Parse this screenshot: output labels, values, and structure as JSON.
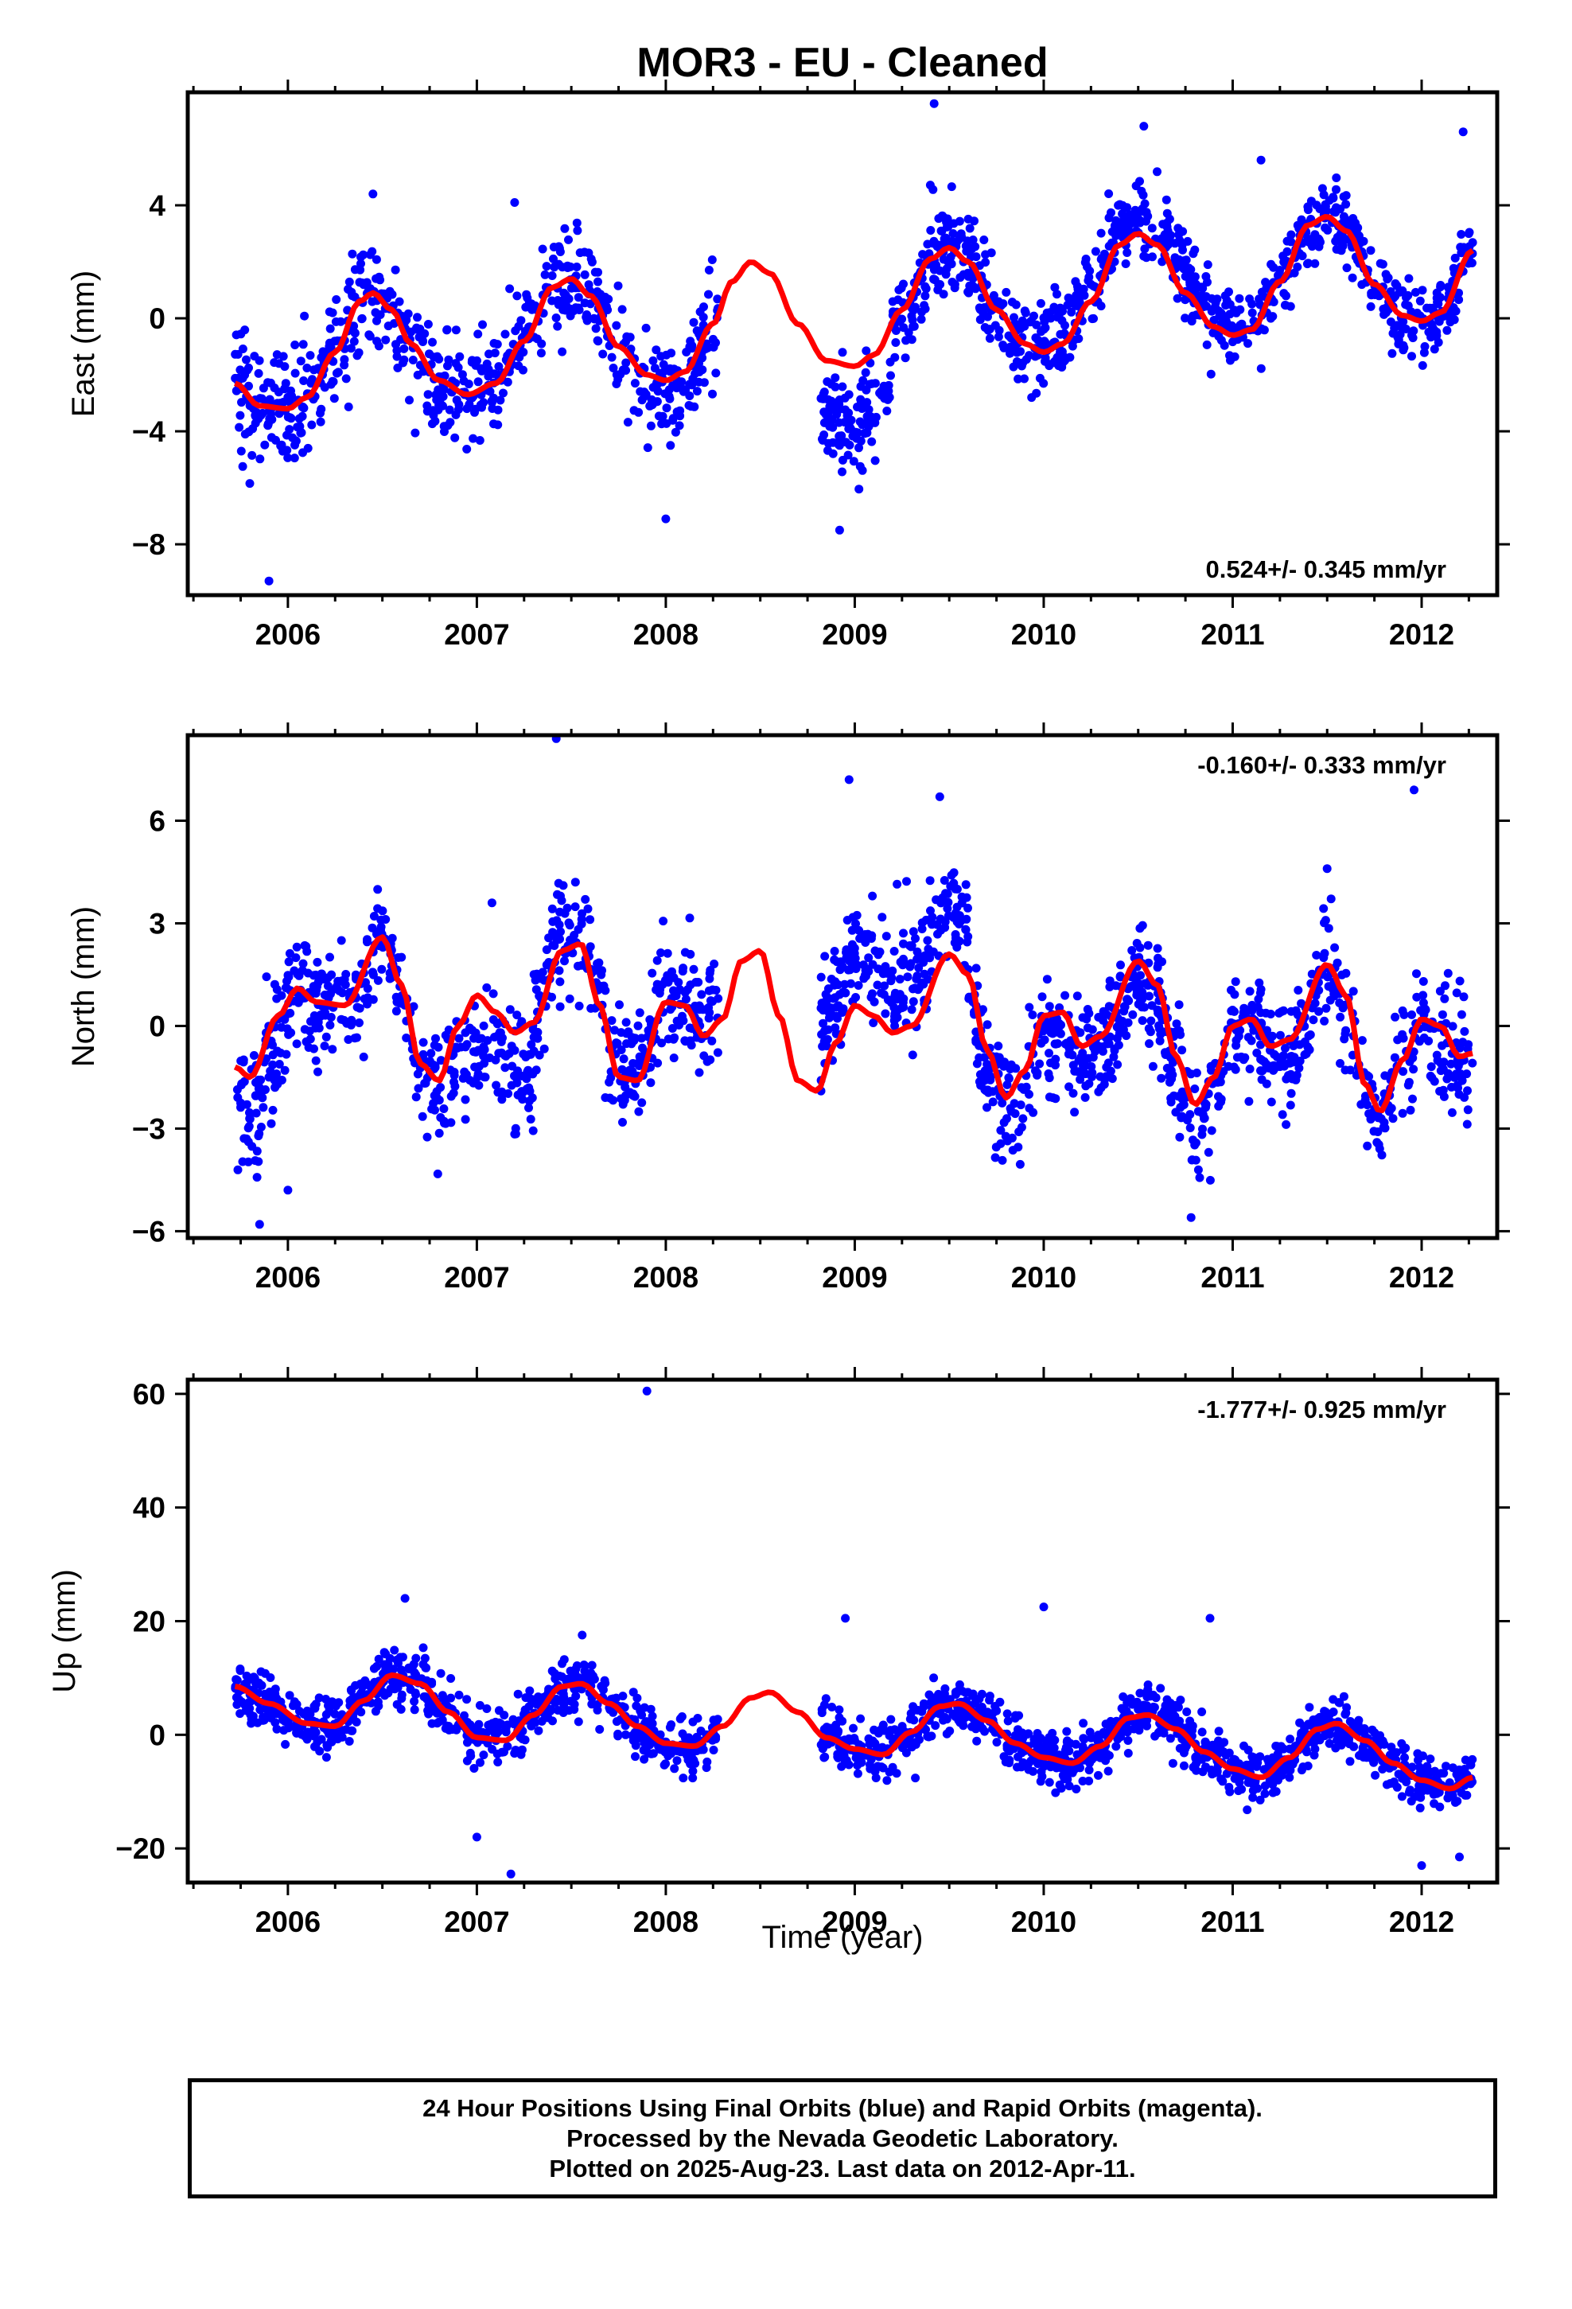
{
  "title": "MOR3  - EU - Cleaned",
  "colors": {
    "final_points": "#0000ff",
    "model_curve": "#ff0000",
    "frame": "#000000"
  },
  "chart_data": [
    {
      "type": "scatter",
      "ylabel": "East (mm)",
      "xlabel": "",
      "xlim": [
        2005.47,
        2012.4
      ],
      "ylim": [
        -9.8,
        8.0
      ],
      "x_ticks": [
        2006,
        2007,
        2008,
        2009,
        2010,
        2011,
        2012
      ],
      "x_tick_labels": [
        "2006",
        "2007",
        "2008",
        "2009",
        "2010",
        "2011",
        "2012"
      ],
      "y_ticks": [
        -8,
        -4,
        0,
        4
      ],
      "y_tick_labels": [
        "−8",
        "−4",
        "0",
        "4"
      ],
      "rate_label": "0.524+/- 0.345 mm/yr",
      "rate_position": "bottom-right",
      "model_curve": {
        "x": [
          2005.72,
          2005.85,
          2006.0,
          2006.1,
          2006.25,
          2006.38,
          2006.45,
          2006.55,
          2006.65,
          2006.8,
          2006.95,
          2007.1,
          2007.25,
          2007.4,
          2007.5,
          2007.6,
          2007.75,
          2007.9,
          2008.0,
          2008.1,
          2008.25,
          2008.35,
          2008.45,
          2008.55,
          2008.7,
          2008.85,
          2009.0,
          2009.1,
          2009.25,
          2009.4,
          2009.5,
          2009.6,
          2009.75,
          2009.9,
          2010.0,
          2010.1,
          2010.25,
          2010.4,
          2010.5,
          2010.6,
          2010.75,
          2010.9,
          2011.0,
          2011.1,
          2011.25,
          2011.4,
          2011.5,
          2011.6,
          2011.75,
          2011.9,
          2012.0,
          2012.1,
          2012.27
        ],
        "y": [
          -2.3,
          -3.1,
          -3.2,
          -2.8,
          -1.2,
          0.6,
          0.9,
          0.3,
          -0.9,
          -2.2,
          -2.7,
          -2.3,
          -0.8,
          1.1,
          1.4,
          0.8,
          -1.0,
          -2.0,
          -2.2,
          -1.9,
          -0.2,
          1.3,
          2.0,
          1.6,
          -0.2,
          -1.5,
          -1.7,
          -1.3,
          0.3,
          2.1,
          2.5,
          2.0,
          0.3,
          -0.9,
          -1.2,
          -0.9,
          0.6,
          2.6,
          3.0,
          2.6,
          0.9,
          -0.3,
          -0.6,
          -0.4,
          1.3,
          3.3,
          3.6,
          3.1,
          1.2,
          0.1,
          -0.1,
          0.2,
          2.4
        ]
      },
      "scatter_clusters": [
        {
          "x_start": 2005.72,
          "x_end": 2006.0,
          "count": 90,
          "spread": 2.0,
          "offset": 0.0
        },
        {
          "x_start": 2006.0,
          "x_end": 2006.8,
          "count": 210,
          "spread": 1.6,
          "offset": 0.0
        },
        {
          "x_start": 2006.8,
          "x_end": 2007.9,
          "count": 260,
          "spread": 1.6,
          "offset": 0.0
        },
        {
          "x_start": 2007.9,
          "x_end": 2008.28,
          "count": 110,
          "spread": 1.8,
          "offset": -0.4
        },
        {
          "x_start": 2008.82,
          "x_end": 2009.2,
          "count": 120,
          "spread": 1.5,
          "offset": -2.0
        },
        {
          "x_start": 2009.2,
          "x_end": 2010.0,
          "count": 230,
          "spread": 1.5,
          "offset": 0.0
        },
        {
          "x_start": 2010.0,
          "x_end": 2011.0,
          "count": 300,
          "spread": 1.3,
          "offset": 0.5
        },
        {
          "x_start": 2011.0,
          "x_end": 2012.27,
          "count": 340,
          "spread": 1.2,
          "offset": 0.0
        }
      ],
      "outliers": [
        {
          "x": 2005.9,
          "y": -9.3
        },
        {
          "x": 2008.0,
          "y": -7.1
        },
        {
          "x": 2008.92,
          "y": -7.5
        },
        {
          "x": 2009.42,
          "y": 7.6
        },
        {
          "x": 2010.53,
          "y": 6.8
        },
        {
          "x": 2012.22,
          "y": 6.6
        },
        {
          "x": 2007.2,
          "y": 4.1
        },
        {
          "x": 2006.45,
          "y": 4.4
        },
        {
          "x": 2011.15,
          "y": 5.6
        }
      ]
    },
    {
      "type": "scatter",
      "ylabel": "North (mm)",
      "xlabel": "",
      "xlim": [
        2005.47,
        2012.4
      ],
      "ylim": [
        -6.2,
        8.5
      ],
      "x_ticks": [
        2006,
        2007,
        2008,
        2009,
        2010,
        2011,
        2012
      ],
      "x_tick_labels": [
        "2006",
        "2007",
        "2008",
        "2009",
        "2010",
        "2011",
        "2012"
      ],
      "y_ticks": [
        -6,
        -3,
        0,
        3,
        6
      ],
      "y_tick_labels": [
        "−6",
        "−3",
        "0",
        "3",
        "6"
      ],
      "rate_label": "-0.160+/- 0.333 mm/yr",
      "rate_position": "top-right",
      "model_curve": {
        "x": [
          2005.72,
          2005.8,
          2005.95,
          2006.05,
          2006.15,
          2006.3,
          2006.5,
          2006.6,
          2006.7,
          2006.8,
          2006.9,
          2007.0,
          2007.1,
          2007.2,
          2007.3,
          2007.45,
          2007.55,
          2007.65,
          2007.75,
          2007.85,
          2008.0,
          2008.1,
          2008.2,
          2008.3,
          2008.4,
          2008.5,
          2008.6,
          2008.7,
          2008.8,
          2008.9,
          2009.0,
          2009.1,
          2009.2,
          2009.3,
          2009.5,
          2009.6,
          2009.7,
          2009.8,
          2009.9,
          2010.0,
          2010.1,
          2010.2,
          2010.3,
          2010.5,
          2010.6,
          2010.7,
          2010.8,
          2010.9,
          2011.0,
          2011.1,
          2011.2,
          2011.3,
          2011.5,
          2011.6,
          2011.7,
          2011.78,
          2011.9,
          2012.0,
          2012.1,
          2012.2,
          2012.27
        ],
        "y": [
          -1.2,
          -1.5,
          0.3,
          1.1,
          0.7,
          0.6,
          2.6,
          1.2,
          -1.1,
          -1.6,
          0.0,
          0.9,
          0.4,
          -0.2,
          0.1,
          2.2,
          2.4,
          0.6,
          -1.5,
          -1.6,
          0.7,
          0.6,
          -0.3,
          0.2,
          1.9,
          2.2,
          0.3,
          -1.6,
          -1.9,
          -0.5,
          0.6,
          0.3,
          -0.2,
          0.0,
          2.1,
          1.5,
          -0.7,
          -2.1,
          -1.3,
          0.3,
          0.4,
          -0.6,
          -0.3,
          1.9,
          1.2,
          -0.9,
          -2.3,
          -1.5,
          0.0,
          0.2,
          -0.6,
          -0.4,
          1.8,
          0.9,
          -1.7,
          -2.5,
          -1.0,
          0.2,
          0.0,
          -0.9,
          -0.8
        ]
      },
      "scatter_clusters": [
        {
          "x_start": 2005.72,
          "x_end": 2006.0,
          "count": 90,
          "spread": 2.0,
          "offset": -0.8
        },
        {
          "x_start": 2006.0,
          "x_end": 2006.8,
          "count": 220,
          "spread": 1.4,
          "offset": 0.0
        },
        {
          "x_start": 2006.8,
          "x_end": 2007.3,
          "count": 130,
          "spread": 1.6,
          "offset": -1.2
        },
        {
          "x_start": 2007.3,
          "x_end": 2007.9,
          "count": 170,
          "spread": 1.6,
          "offset": 0.4
        },
        {
          "x_start": 2007.9,
          "x_end": 2008.28,
          "count": 110,
          "spread": 1.7,
          "offset": 0.3
        },
        {
          "x_start": 2008.82,
          "x_end": 2009.6,
          "count": 250,
          "spread": 1.4,
          "offset": 1.4
        },
        {
          "x_start": 2009.6,
          "x_end": 2010.0,
          "count": 110,
          "spread": 1.5,
          "offset": -0.6
        },
        {
          "x_start": 2010.0,
          "x_end": 2011.0,
          "count": 300,
          "spread": 1.5,
          "offset": -0.5
        },
        {
          "x_start": 2011.0,
          "x_end": 2012.27,
          "count": 340,
          "spread": 1.5,
          "offset": -0.3
        }
      ],
      "outliers": [
        {
          "x": 2007.42,
          "y": 8.4
        },
        {
          "x": 2008.97,
          "y": 7.2
        },
        {
          "x": 2011.96,
          "y": 6.9
        },
        {
          "x": 2009.45,
          "y": 6.7
        },
        {
          "x": 2005.85,
          "y": -5.8
        },
        {
          "x": 2006.0,
          "y": -4.8
        },
        {
          "x": 2010.78,
          "y": -5.6
        },
        {
          "x": 2011.5,
          "y": 4.6
        },
        {
          "x": 2007.08,
          "y": 3.6
        }
      ]
    },
    {
      "type": "scatter",
      "ylabel": "Up (mm)",
      "xlabel": "Time (year)",
      "xlim": [
        2005.47,
        2012.4
      ],
      "ylim": [
        -26,
        62.5
      ],
      "x_ticks": [
        2006,
        2007,
        2008,
        2009,
        2010,
        2011,
        2012
      ],
      "x_tick_labels": [
        "2006",
        "2007",
        "2008",
        "2009",
        "2010",
        "2011",
        "2012"
      ],
      "y_ticks": [
        -20,
        0,
        20,
        40,
        60
      ],
      "y_tick_labels": [
        "−20",
        "0",
        "20",
        "40",
        "60"
      ],
      "rate_label": "-1.777+/- 0.925 mm/yr",
      "rate_position": "top-right",
      "model_curve": {
        "x": [
          2005.72,
          2005.9,
          2006.1,
          2006.25,
          2006.4,
          2006.55,
          2006.7,
          2006.85,
          2007.0,
          2007.15,
          2007.3,
          2007.45,
          2007.55,
          2007.7,
          2007.85,
          2008.0,
          2008.15,
          2008.3,
          2008.45,
          2008.55,
          2008.7,
          2008.85,
          2009.0,
          2009.15,
          2009.3,
          2009.45,
          2009.55,
          2009.7,
          2009.85,
          2010.0,
          2010.15,
          2010.3,
          2010.45,
          2010.55,
          2010.7,
          2010.85,
          2011.0,
          2011.15,
          2011.3,
          2011.45,
          2011.55,
          2011.7,
          2011.85,
          2012.0,
          2012.15,
          2012.27
        ],
        "y": [
          8.5,
          5.5,
          2.0,
          1.5,
          6.0,
          10.5,
          9.0,
          4.0,
          -0.5,
          -1.0,
          3.5,
          8.5,
          9.0,
          5.5,
          1.5,
          -1.5,
          -2.0,
          1.5,
          6.5,
          7.5,
          4.0,
          -0.5,
          -2.5,
          -3.5,
          0.5,
          5.0,
          5.5,
          2.5,
          -1.5,
          -4.0,
          -5.0,
          -2.0,
          3.0,
          3.5,
          1.0,
          -3.0,
          -6.0,
          -7.5,
          -4.0,
          1.0,
          2.0,
          -1.0,
          -5.0,
          -8.0,
          -9.5,
          -7.5
        ]
      },
      "scatter_clusters": [
        {
          "x_start": 2005.72,
          "x_end": 2006.0,
          "count": 90,
          "spread": 4.5,
          "offset": 0.0
        },
        {
          "x_start": 2006.0,
          "x_end": 2006.8,
          "count": 220,
          "spread": 4.5,
          "offset": 0.0
        },
        {
          "x_start": 2006.8,
          "x_end": 2007.9,
          "count": 270,
          "spread": 4.5,
          "offset": 0.0
        },
        {
          "x_start": 2007.9,
          "x_end": 2008.28,
          "count": 110,
          "spread": 4.0,
          "offset": 0.0
        },
        {
          "x_start": 2008.82,
          "x_end": 2010.0,
          "count": 330,
          "spread": 4.5,
          "offset": 0.0
        },
        {
          "x_start": 2010.0,
          "x_end": 2011.0,
          "count": 300,
          "spread": 4.5,
          "offset": 0.0
        },
        {
          "x_start": 2011.0,
          "x_end": 2012.27,
          "count": 340,
          "spread": 4.0,
          "offset": 0.0
        }
      ],
      "outliers": [
        {
          "x": 2007.9,
          "y": 60.5
        },
        {
          "x": 2006.62,
          "y": 24.0
        },
        {
          "x": 2010.0,
          "y": 22.5
        },
        {
          "x": 2010.88,
          "y": 20.5
        },
        {
          "x": 2008.95,
          "y": 20.5
        },
        {
          "x": 2007.18,
          "y": -24.5
        },
        {
          "x": 2012.0,
          "y": -23.0
        },
        {
          "x": 2007.0,
          "y": -18.0
        },
        {
          "x": 2012.2,
          "y": -21.5
        }
      ]
    }
  ],
  "footer": {
    "line1": "24 Hour Positions Using Final Orbits (blue) and Rapid Orbits (magenta).",
    "line2": "Processed by the Nevada Geodetic Laboratory.",
    "line3": "Plotted on 2025-Aug-23. Last data on 2012-Apr-11."
  }
}
